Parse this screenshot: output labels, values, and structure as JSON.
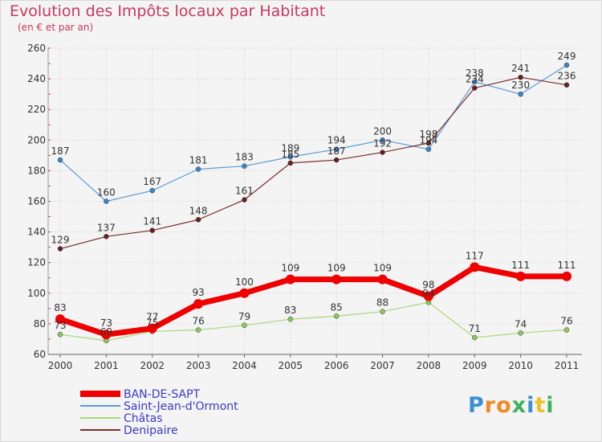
{
  "header": {
    "title": "Evolution des Impôts locaux par Habitant",
    "subtitle": "(en € et par an)"
  },
  "logo": {
    "text": "Proxiti",
    "colors": [
      "#3a8fd6",
      "#f08a24",
      "#f08a24",
      "#3fb25a",
      "#3a8fd6",
      "#f0c020",
      "#3fb25a"
    ]
  },
  "chart_data": {
    "type": "line",
    "title": "Evolution des Impôts locaux par Habitant",
    "subtitle": "(en € et par an)",
    "xlabel": "",
    "ylabel": "",
    "ylim": [
      60,
      260
    ],
    "yticks": [
      60,
      80,
      100,
      120,
      140,
      160,
      180,
      200,
      220,
      240,
      260
    ],
    "categories": [
      "2000",
      "2001",
      "2002",
      "2003",
      "2004",
      "2005",
      "2006",
      "2007",
      "2008",
      "2009",
      "2010",
      "2011"
    ],
    "grid": true,
    "legend_position": "bottom-left",
    "series": [
      {
        "name": "Saint-Jean-d'Ormont",
        "color": "#5b9bd5",
        "marker": "#3a86c8",
        "width": 1.2,
        "values": [
          187,
          160,
          167,
          181,
          183,
          189,
          194,
          200,
          194,
          238,
          230,
          249
        ]
      },
      {
        "name": "Denipaire",
        "color": "#7a2e2e",
        "marker": "#6a1f1f",
        "width": 1.2,
        "values": [
          129,
          137,
          141,
          148,
          161,
          185,
          187,
          192,
          198,
          234,
          241,
          236
        ]
      },
      {
        "name": "Châtas",
        "color": "#a8d878",
        "marker": "#8cc85a",
        "width": 1.2,
        "values": [
          73,
          69,
          75,
          76,
          79,
          83,
          85,
          88,
          94,
          71,
          74,
          76
        ]
      },
      {
        "name": "BAN-DE-SAPT",
        "color": "#ee0000",
        "marker": "#ee0000",
        "width": 7,
        "values": [
          83,
          73,
          77,
          93,
          100,
          109,
          109,
          109,
          98,
          117,
          111,
          111
        ]
      }
    ],
    "legend": [
      "BAN-DE-SAPT",
      "Saint-Jean-d'Ormont",
      "Châtas",
      "Denipaire"
    ]
  }
}
